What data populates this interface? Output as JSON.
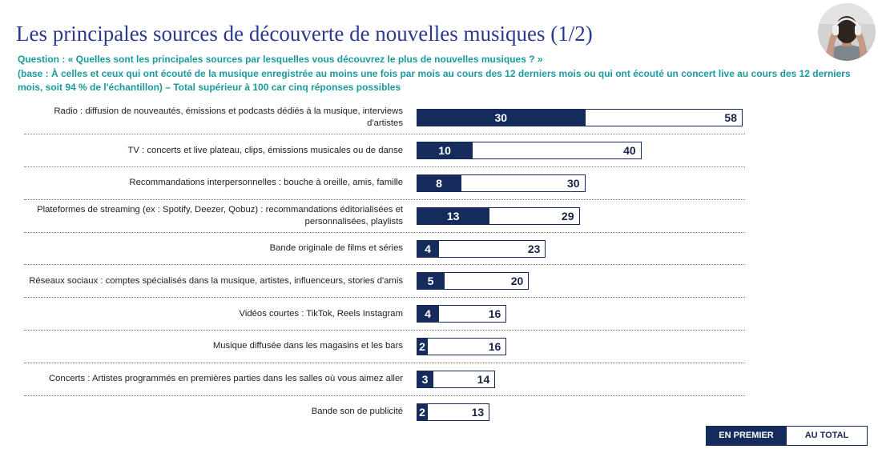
{
  "colors": {
    "title": "#2b3990",
    "question_text": "#1a9a9c",
    "bar_en_premier": "#152b5c",
    "bar_au_total_fill": "#ffffff",
    "label_text": "#1e1e1e"
  },
  "header": {
    "title": "Les principales sources de découverte de nouvelles musiques (1/2)",
    "question": "Question : « Quelles sont les principales sources par lesquelles vous découvrez le plus de nouvelles musiques ? »",
    "base": "(base : À celles et ceux qui ont écouté de la musique enregistrée au moins une fois par mois au cours des 12 derniers mois ou qui ont écouté un concert live au cours des 12 derniers mois, soit 94 % de l'échantillon) – Total supérieur à 100 car cinq réponses possibles"
  },
  "avatar": {
    "icon": "person-with-headphones-photo"
  },
  "chart_data": {
    "type": "bar",
    "orientation": "horizontal",
    "bar_mode": "overlay",
    "categories": [
      "Radio : diffusion de nouveautés, émissions et podcasts dédiés à la musique, interviews d'artistes",
      "TV : concerts et live plateau, clips, émissions musicales ou de danse",
      "Recommandations interpersonnelles : bouche à oreille, amis, famille",
      "Plateformes de streaming (ex : Spotify, Deezer, Qobuz) : recommandations éditorialisées et personnalisées, playlists",
      "Bande originale de films et séries",
      "Réseaux sociaux : comptes spécialisés dans la musique, artistes, influenceurs, stories d'amis",
      "Vidéos courtes : TikTok, Reels Instagram",
      "Musique diffusée dans les magasins et les bars",
      "Concerts : Artistes programmés en premières parties dans les salles où vous aimez aller",
      "Bande son de publicité"
    ],
    "series": [
      {
        "name": "EN PREMIER",
        "values": [
          30,
          10,
          8,
          13,
          4,
          5,
          4,
          2,
          3,
          2
        ]
      },
      {
        "name": "AU TOTAL",
        "values": [
          58,
          40,
          30,
          29,
          23,
          20,
          16,
          16,
          14,
          13
        ]
      }
    ],
    "data_labels": true,
    "grid": false,
    "legend": "bottom-right"
  }
}
